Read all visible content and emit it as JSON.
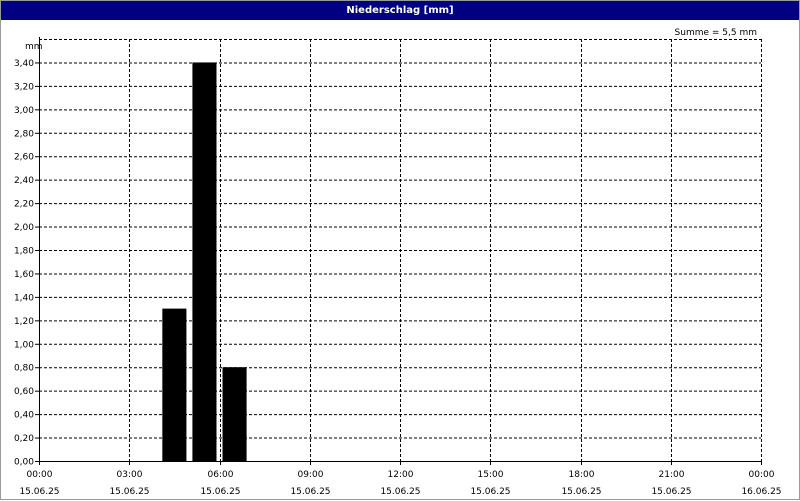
{
  "window": {
    "title": "Niederschlag [mm]"
  },
  "chart_data": {
    "type": "bar",
    "title": "Niederschlag [mm]",
    "ylabel": "mm",
    "xlabel": "",
    "annotation": "Summe = 5,5 mm",
    "ylim": [
      0,
      3.6
    ],
    "yticks": [
      "0,00",
      "0,20",
      "0,40",
      "0,60",
      "0,80",
      "1,00",
      "1,20",
      "1,40",
      "1,60",
      "1,80",
      "2,00",
      "2,20",
      "2,40",
      "2,60",
      "2,80",
      "3,00",
      "3,20",
      "3,40"
    ],
    "xlim": [
      "15.06.25 00:00",
      "16.06.25 00:00"
    ],
    "xticks": [
      {
        "time": "00:00",
        "date": "15.06.25"
      },
      {
        "time": "03:00",
        "date": "15.06.25"
      },
      {
        "time": "06:00",
        "date": "15.06.25"
      },
      {
        "time": "09:00",
        "date": "15.06.25"
      },
      {
        "time": "12:00",
        "date": "15.06.25"
      },
      {
        "time": "15:00",
        "date": "15.06.25"
      },
      {
        "time": "18:00",
        "date": "15.06.25"
      },
      {
        "time": "21:00",
        "date": "15.06.25"
      },
      {
        "time": "00:00",
        "date": "16.06.25"
      }
    ],
    "bars": [
      {
        "start": "15.06.25 04:00",
        "end": "15.06.25 05:00",
        "value": 1.3
      },
      {
        "start": "15.06.25 05:00",
        "end": "15.06.25 06:00",
        "value": 3.4
      },
      {
        "start": "15.06.25 06:00",
        "end": "15.06.25 07:00",
        "value": 0.8
      }
    ],
    "grid": true,
    "bar_color": "#000000"
  }
}
